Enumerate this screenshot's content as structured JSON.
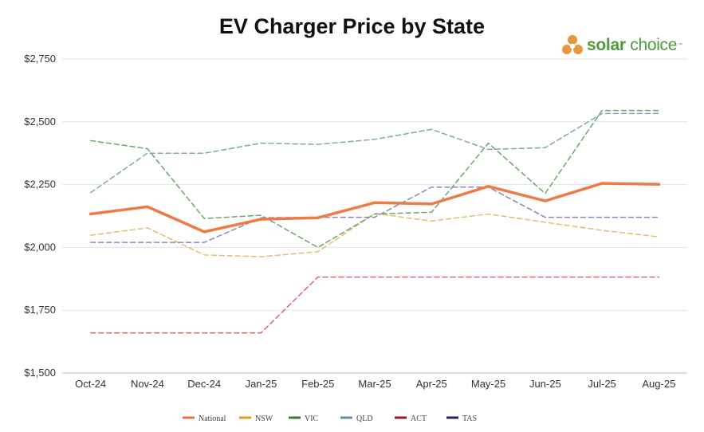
{
  "logo": {
    "brand_bold": "solar",
    "brand_light": " choice",
    "tm": "™"
  },
  "chart_data": {
    "type": "line",
    "title": "EV Charger Price by State",
    "xlabel": "",
    "ylabel": "",
    "categories": [
      "Oct-24",
      "Nov-24",
      "Dec-24",
      "Jan-25",
      "Feb-25",
      "Mar-25",
      "Apr-25",
      "May-25",
      "Jun-25",
      "Jul-25",
      "Aug-25"
    ],
    "ylim": [
      1500,
      2750
    ],
    "yticks": [
      1500,
      1750,
      2000,
      2250,
      2500,
      2750
    ],
    "ytick_labels": [
      "$1,500",
      "$1,750",
      "$2,000",
      "$2,250",
      "$2,500",
      "$2,750"
    ],
    "grid": true,
    "legend_position": "bottom",
    "series": [
      {
        "name": "NSW",
        "color": "#e0c070",
        "dashed": true,
        "values": [
          2048,
          2078,
          1970,
          1963,
          1983,
          2135,
          2105,
          2133,
          2100,
          2068,
          2042
        ]
      },
      {
        "name": "VIC",
        "color": "#6aa86a",
        "dashed": true,
        "values": [
          2425,
          2393,
          2115,
          2128,
          2000,
          2133,
          2140,
          2415,
          2215,
          2545,
          2545
        ]
      },
      {
        "name": "QLD",
        "color": "#7ea7b4",
        "dashed": true,
        "values": [
          2218,
          2375,
          2375,
          2415,
          2410,
          2430,
          2470,
          2390,
          2397,
          2533,
          2533
        ]
      },
      {
        "name": "ACT",
        "color": "#d06a6a",
        "dashed": true,
        "values": [
          1660,
          1660,
          1660,
          1660,
          1882,
          1882,
          1882,
          1882,
          1882,
          1882,
          1882
        ]
      },
      {
        "name": "TAS",
        "color": "#8c86bf",
        "dashed": true,
        "values": [
          2020,
          2020,
          2020,
          2118,
          2120,
          2120,
          2240,
          2240,
          2120,
          2120,
          2120
        ]
      },
      {
        "name": "National",
        "color": "#ee7b45",
        "dashed": false,
        "values": [
          2133,
          2162,
          2062,
          2112,
          2118,
          2178,
          2173,
          2243,
          2185,
          2255,
          2251
        ]
      }
    ],
    "legend": [
      {
        "name": "National",
        "color": "#e8733a"
      },
      {
        "name": "NSW",
        "color": "#d4a020"
      },
      {
        "name": "VIC",
        "color": "#3a7d2a"
      },
      {
        "name": "QLD",
        "color": "#5a8fa0"
      },
      {
        "name": "ACT",
        "color": "#9a1a1a"
      },
      {
        "name": "TAS",
        "color": "#2a2060"
      }
    ]
  }
}
